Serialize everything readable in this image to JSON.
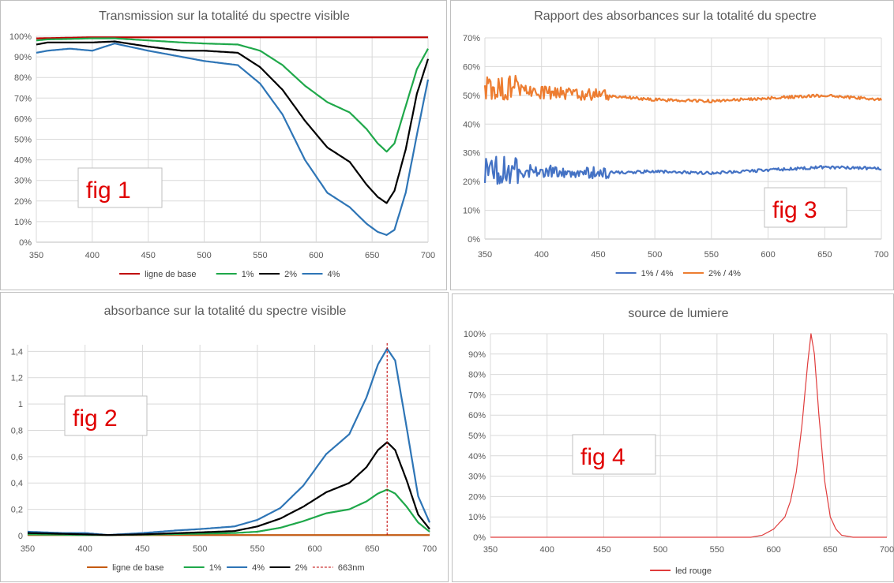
{
  "chart_data": [
    {
      "id": "fig1",
      "type": "line",
      "title": "Transmission sur la totalité du spectre visible",
      "figure_label": "fig 1",
      "xlim": [
        350,
        700
      ],
      "xticks": [
        350,
        400,
        450,
        500,
        550,
        600,
        650,
        700
      ],
      "ylim": [
        0,
        100
      ],
      "yticks": [
        0,
        10,
        20,
        30,
        40,
        50,
        60,
        70,
        80,
        90,
        100
      ],
      "yformat": "percent",
      "series": [
        {
          "name": "ligne de base",
          "color": "#c00000",
          "x": [
            350,
            400,
            450,
            500,
            550,
            600,
            650,
            700
          ],
          "y": [
            99,
            99.5,
            99.5,
            99.5,
            99.5,
            99.5,
            99.5,
            99.5
          ]
        },
        {
          "name": "1%",
          "color": "#1fa84a",
          "x": [
            350,
            360,
            380,
            400,
            420,
            450,
            480,
            500,
            530,
            550,
            570,
            590,
            610,
            630,
            645,
            655,
            663,
            670,
            680,
            690,
            700
          ],
          "y": [
            98,
            98.5,
            98.7,
            99,
            99,
            98,
            97,
            96.5,
            96,
            93,
            86,
            76,
            68,
            63,
            55,
            48,
            44,
            48,
            66,
            84,
            94
          ]
        },
        {
          "name": "2%",
          "color": "#000000",
          "x": [
            350,
            360,
            380,
            400,
            420,
            450,
            480,
            500,
            530,
            550,
            570,
            590,
            610,
            630,
            645,
            655,
            663,
            670,
            680,
            690,
            700
          ],
          "y": [
            96,
            97,
            97,
            97,
            97.5,
            95,
            93,
            93,
            92,
            85,
            74,
            59,
            46,
            39,
            28,
            22,
            19,
            25,
            45,
            72,
            89
          ]
        },
        {
          "name": "4%",
          "color": "#2e75b6",
          "x": [
            350,
            360,
            380,
            400,
            420,
            450,
            480,
            500,
            530,
            550,
            570,
            590,
            610,
            630,
            645,
            655,
            663,
            670,
            680,
            690,
            700
          ],
          "y": [
            92,
            93,
            94,
            93,
            96.5,
            93,
            90,
            88,
            86,
            77,
            62,
            40,
            24,
            17,
            9,
            5,
            3.5,
            6,
            24,
            52,
            79
          ]
        }
      ],
      "legend_labels": [
        "ligne de base",
        "1%",
        "2%",
        "4%"
      ]
    },
    {
      "id": "fig3",
      "type": "line",
      "title": "Rapport des absorbances sur la totalité du spectre",
      "figure_label": "fig 3",
      "xlim": [
        350,
        700
      ],
      "xticks": [
        350,
        400,
        450,
        500,
        550,
        600,
        650,
        700
      ],
      "ylim": [
        0,
        70
      ],
      "yticks": [
        0,
        10,
        20,
        30,
        40,
        50,
        60,
        70
      ],
      "yformat": "percent",
      "series": [
        {
          "name": "1% / 4%",
          "color": "#4472c4",
          "noisy": true,
          "noise_until": 460,
          "x": [
            350,
            400,
            450,
            500,
            550,
            600,
            650,
            700
          ],
          "y": [
            24,
            23.5,
            23,
            23.5,
            23,
            24,
            25,
            24.5
          ]
        },
        {
          "name": "2% / 4%",
          "color": "#ed7d31",
          "noisy": true,
          "noise_until": 460,
          "x": [
            350,
            400,
            450,
            500,
            550,
            600,
            650,
            700
          ],
          "y": [
            53,
            51,
            50,
            48.5,
            48,
            49,
            50,
            48.5
          ]
        }
      ],
      "legend_labels": [
        "1% / 4%",
        "2% / 4%"
      ]
    },
    {
      "id": "fig2",
      "type": "line",
      "title": "absorbance sur la totalité du spectre visible",
      "figure_label": "fig 2",
      "xlim": [
        350,
        700
      ],
      "xticks": [
        350,
        400,
        450,
        500,
        550,
        600,
        650,
        700
      ],
      "ylim": [
        0,
        1.45
      ],
      "yticks": [
        0,
        0.2,
        0.4,
        0.6,
        0.8,
        1,
        1.2,
        1.4
      ],
      "ytick_labels": [
        "0",
        "0,2",
        "0,4",
        "0,6",
        "0,8",
        "1",
        "1,2",
        "1,4"
      ],
      "vline": {
        "x": 663,
        "label": "663nm",
        "color": "#c00000"
      },
      "series": [
        {
          "name": "ligne de base",
          "color": "#c55a11",
          "x": [
            350,
            700
          ],
          "y": [
            0.005,
            0.005
          ]
        },
        {
          "name": "1%",
          "color": "#1fa84a",
          "x": [
            350,
            400,
            420,
            450,
            500,
            530,
            550,
            570,
            590,
            610,
            630,
            645,
            655,
            663,
            670,
            680,
            690,
            700
          ],
          "y": [
            0.01,
            0.005,
            0.005,
            0.008,
            0.015,
            0.02,
            0.03,
            0.06,
            0.11,
            0.17,
            0.2,
            0.26,
            0.32,
            0.35,
            0.32,
            0.22,
            0.1,
            0.03
          ]
        },
        {
          "name": "4%",
          "color": "#2e75b6",
          "x": [
            350,
            380,
            400,
            420,
            450,
            480,
            500,
            530,
            550,
            570,
            590,
            610,
            630,
            645,
            655,
            663,
            670,
            680,
            690,
            700
          ],
          "y": [
            0.03,
            0.02,
            0.02,
            0.005,
            0.02,
            0.04,
            0.05,
            0.07,
            0.12,
            0.21,
            0.38,
            0.62,
            0.77,
            1.05,
            1.3,
            1.42,
            1.33,
            0.82,
            0.3,
            0.1
          ]
        },
        {
          "name": "2%",
          "color": "#000000",
          "x": [
            350,
            400,
            420,
            450,
            500,
            530,
            550,
            570,
            590,
            610,
            630,
            645,
            655,
            663,
            670,
            680,
            690,
            700
          ],
          "y": [
            0.02,
            0.01,
            0.005,
            0.01,
            0.025,
            0.035,
            0.07,
            0.13,
            0.22,
            0.33,
            0.4,
            0.52,
            0.65,
            0.71,
            0.65,
            0.42,
            0.16,
            0.05
          ]
        }
      ],
      "legend_labels": [
        "ligne de base",
        "1%",
        "4%",
        "2%",
        "663nm"
      ]
    },
    {
      "id": "fig4",
      "type": "line",
      "title": "source de lumiere",
      "figure_label": "fig 4",
      "xlim": [
        350,
        700
      ],
      "xticks": [
        350,
        400,
        450,
        500,
        550,
        600,
        650,
        700
      ],
      "ylim": [
        0,
        100
      ],
      "yticks": [
        0,
        10,
        20,
        30,
        40,
        50,
        60,
        70,
        80,
        90,
        100
      ],
      "yformat": "percent",
      "series": [
        {
          "name": "led rouge",
          "color": "#e03c3c",
          "x": [
            350,
            580,
            590,
            600,
            610,
            615,
            620,
            625,
            630,
            633,
            636,
            640,
            645,
            650,
            655,
            660,
            670,
            700
          ],
          "y": [
            0,
            0,
            1,
            4,
            10,
            18,
            32,
            55,
            85,
            100,
            90,
            60,
            28,
            10,
            4,
            1,
            0,
            0
          ]
        }
      ],
      "legend_labels": [
        "led rouge"
      ]
    }
  ]
}
